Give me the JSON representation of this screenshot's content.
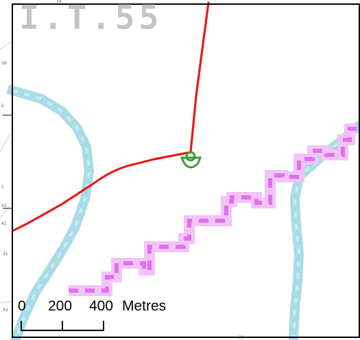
{
  "map": {
    "sheet_label": "I.T.55",
    "edge_numbers": {
      "top": "34",
      "left": [
        "56",
        "2",
        "1",
        "42",
        "41",
        "31",
        "32"
      ],
      "bottom": [
        "30"
      ]
    },
    "colors": {
      "route": "#e81818",
      "river": "#a8dce6",
      "boundary": "#e68cf0",
      "marker": "#3aa030",
      "frame": "#000000"
    }
  },
  "scale_bar": {
    "labels": [
      "0",
      "200",
      "400"
    ],
    "unit": "Metres"
  }
}
